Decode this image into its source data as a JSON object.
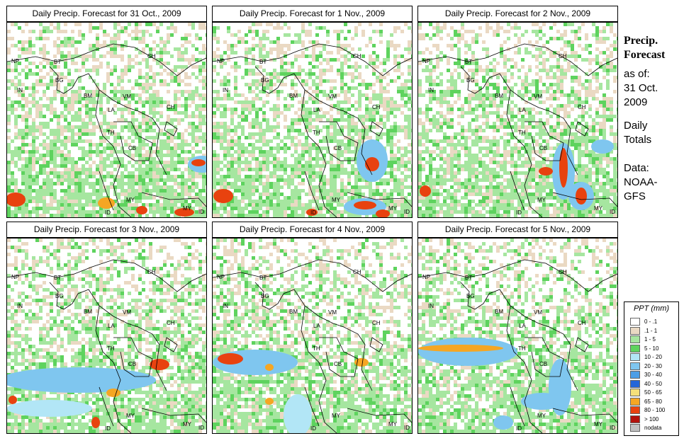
{
  "panels": [
    {
      "title": "Daily Precip. Forecast for  31 Oct., 2009",
      "day": "31 Oct"
    },
    {
      "title": "Daily Precip. Forecast for  1 Nov., 2009",
      "day": "1 Nov"
    },
    {
      "title": "Daily Precip. Forecast for  2 Nov., 2009",
      "day": "2 Nov"
    },
    {
      "title": "Daily Precip. Forecast for  3 Nov., 2009",
      "day": "3 Nov"
    },
    {
      "title": "Daily Precip. Forecast for  4 Nov., 2009",
      "day": "4 Nov"
    },
    {
      "title": "Daily Precip. Forecast for  5 Nov., 2009",
      "day": "5 Nov"
    }
  ],
  "country_labels": [
    "NP",
    "BT",
    "IN",
    "BG",
    "BM",
    "CH",
    "VM",
    "LA",
    "TH",
    "CB",
    "CH",
    "MY",
    "MY",
    "ID",
    "ID"
  ],
  "sidebar": {
    "title_line1": "Precip.",
    "title_line2": "Forecast",
    "asof_line1": "as of:",
    "asof_line2": "31 Oct.",
    "asof_line3": "2009",
    "totals_line1": "Daily",
    "totals_line2": "Totals",
    "source_line1": "Data:",
    "source_line2": "NOAA-",
    "source_line3": "GFS"
  },
  "legend": {
    "title": "PPT (mm)",
    "entries": [
      {
        "label": "0 - .1",
        "color": "#ffffff"
      },
      {
        "label": ".1 - 1",
        "color": "#ead9c3"
      },
      {
        "label": "1 - 5",
        "color": "#a6e6a0"
      },
      {
        "label": "5 - 10",
        "color": "#5ed35e"
      },
      {
        "label": "10 - 20",
        "color": "#b2e6f6"
      },
      {
        "label": "20 - 30",
        "color": "#7fc6ef"
      },
      {
        "label": "30 - 40",
        "color": "#4d9ee6"
      },
      {
        "label": "40 - 50",
        "color": "#2466d9"
      },
      {
        "label": "50 - 65",
        "color": "#f5e07a"
      },
      {
        "label": "65 - 80",
        "color": "#f5a623"
      },
      {
        "label": "80 - 100",
        "color": "#e8420f"
      },
      {
        "label": "> 100",
        "color": "#b3120c"
      },
      {
        "label": "nodata",
        "color": "#c0c0c0"
      }
    ]
  },
  "colors": {
    "dry": "#ffffff",
    "trace": "#ead9c3",
    "light": "#a6e6a0",
    "moderate": "#5ed35e",
    "blue_light": "#b2e6f6",
    "blue_mid": "#7fc6ef",
    "blue_dark": "#2466d9",
    "orange": "#f5a623",
    "red": "#e8420f",
    "darkred": "#b3120c"
  }
}
